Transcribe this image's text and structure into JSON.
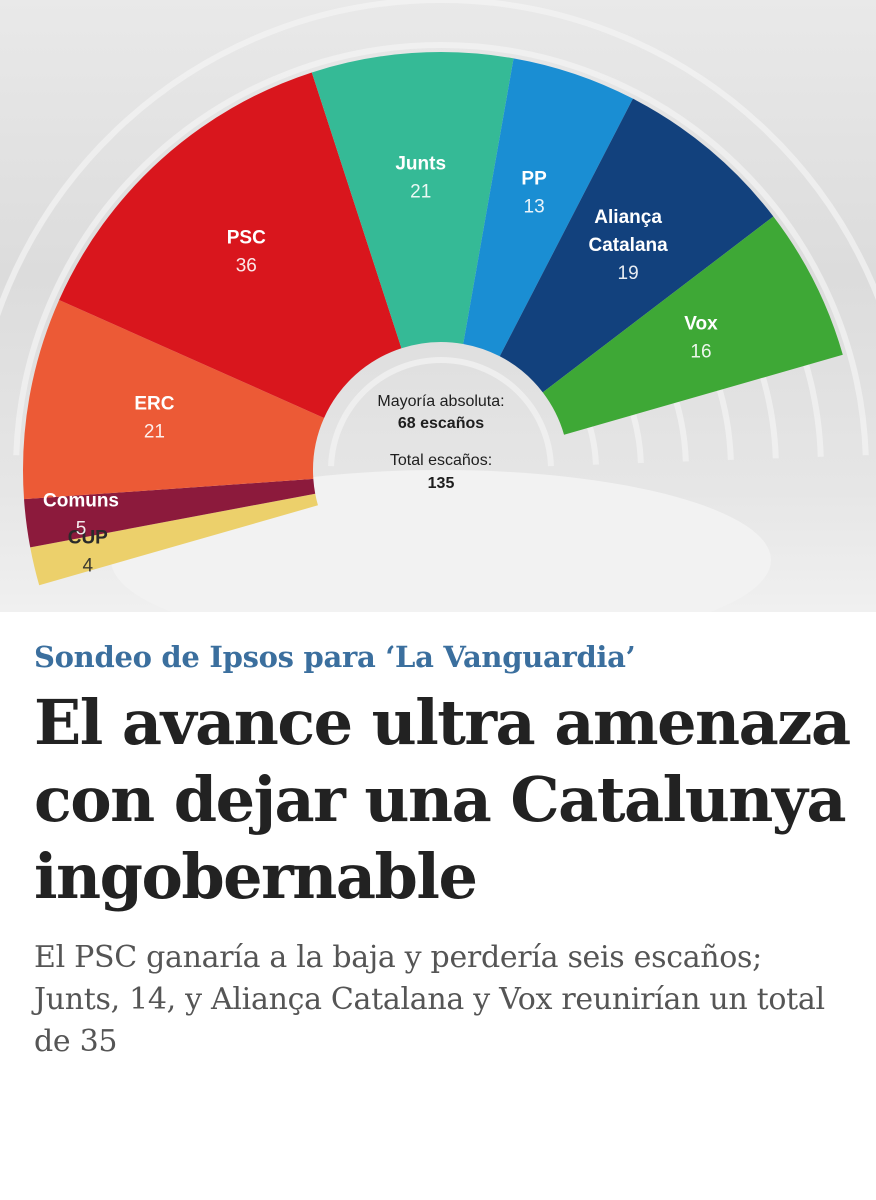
{
  "chart_data": {
    "type": "pie",
    "subtype": "parliament-half-donut",
    "segments": [
      {
        "party": "CUP",
        "seats": 4,
        "color": "#ecd06b",
        "label_dark": true
      },
      {
        "party": "Comuns",
        "seats": 5,
        "color": "#8c1a3c",
        "label_dark": false
      },
      {
        "party": "ERC",
        "seats": 21,
        "color": "#ec5a36",
        "label_dark": false
      },
      {
        "party": "PSC",
        "seats": 36,
        "color": "#d9161d",
        "label_dark": false
      },
      {
        "party": "Junts",
        "seats": 21,
        "color": "#35ba96",
        "label_dark": false
      },
      {
        "party": "PP",
        "seats": 13,
        "color": "#1a8ed3",
        "label_dark": false
      },
      {
        "party": "Aliança Catalana",
        "seats": 19,
        "color": "#12417d",
        "label_dark": false
      },
      {
        "party": "Vox",
        "seats": 16,
        "color": "#3ea836",
        "label_dark": false
      }
    ],
    "center": {
      "majority_label": "Mayoría absoluta:",
      "majority_value": "68 escaños",
      "total_label": "Total escaños:",
      "total_value": "135"
    }
  },
  "article": {
    "kicker": "Sondeo de Ipsos para ‘La Vanguardia’",
    "headline": "El avance ultra amenaza con dejar una Catalunya ingobernable",
    "subhead": "El PSC ganaría a la baja y perdería seis escaños; Junts, 14, y Aliança Catalana y Vox reunirían un total de 35"
  }
}
